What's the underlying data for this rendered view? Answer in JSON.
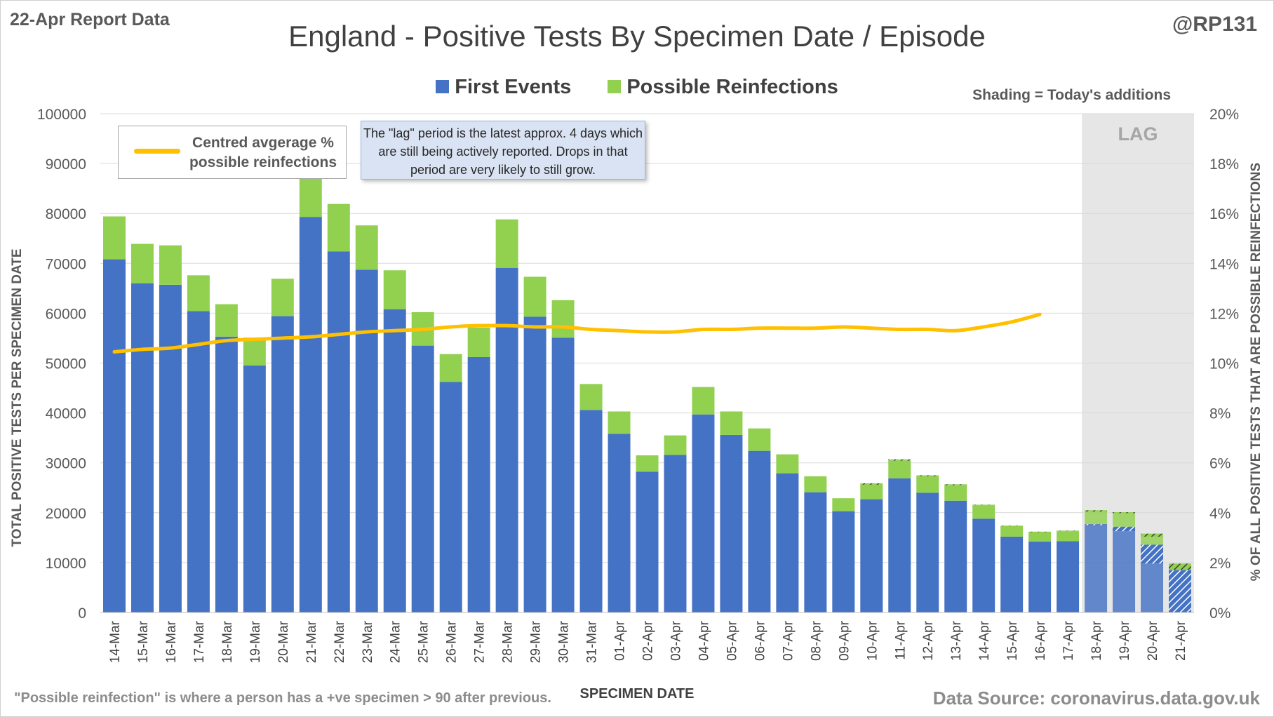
{
  "header": {
    "report_date": "22-Apr Report Data",
    "handle": "@RP131",
    "title": "England - Positive Tests By Specimen Date / Episode",
    "shading_note": "Shading = Today's additions"
  },
  "legend": {
    "first_events": "First Events",
    "possible_reinfections": "Possible Reinfections",
    "line_label": "Centred avgerage % possible reinfections"
  },
  "annotations": {
    "lag_note": "The \"lag\" period is the latest approx. 4 days which are still being actively reported.  Drops in that period are very likely to still grow.",
    "lag_label": "LAG"
  },
  "footer": {
    "footnote": "\"Possible reinfection\" is where a person has a +ve specimen > 90 after previous.",
    "source": "Data Source: coronavirus.data.gov.uk"
  },
  "colors": {
    "first_events": "#4472c4",
    "possible_reinfections": "#92d050",
    "average_line": "#ffc000",
    "lag_shade": "#e7e6e6"
  },
  "chart_data": {
    "type": "bar",
    "stacked": true,
    "xlabel": "SPECIMEN DATE",
    "ylabel": "TOTAL POSITIVE TESTS PER SPECIMEN DATE",
    "y2label": "% OF ALL POSITIVE TESTS THAT ARE POSSIBLE REINFECTIONS",
    "ylim": [
      0,
      100000
    ],
    "y2lim": [
      0,
      20
    ],
    "yticks": [
      "0",
      "10000",
      "20000",
      "30000",
      "40000",
      "50000",
      "60000",
      "70000",
      "80000",
      "90000",
      "100000"
    ],
    "y2ticks": [
      "0%",
      "2%",
      "4%",
      "6%",
      "8%",
      "10%",
      "12%",
      "14%",
      "16%",
      "18%",
      "20%"
    ],
    "grid": true,
    "legend_position": "top",
    "categories": [
      "14-Mar",
      "15-Mar",
      "16-Mar",
      "17-Mar",
      "18-Mar",
      "19-Mar",
      "20-Mar",
      "21-Mar",
      "22-Mar",
      "23-Mar",
      "24-Mar",
      "25-Mar",
      "26-Mar",
      "27-Mar",
      "28-Mar",
      "29-Mar",
      "30-Mar",
      "31-Mar",
      "01-Apr",
      "02-Apr",
      "03-Apr",
      "04-Apr",
      "05-Apr",
      "06-Apr",
      "07-Apr",
      "08-Apr",
      "09-Apr",
      "10-Apr",
      "11-Apr",
      "12-Apr",
      "13-Apr",
      "14-Apr",
      "15-Apr",
      "16-Apr",
      "17-Apr",
      "18-Apr",
      "19-Apr",
      "20-Apr",
      "21-Apr"
    ],
    "series": [
      {
        "name": "First Events",
        "values": [
          70800,
          66000,
          65700,
          60400,
          55300,
          49500,
          59400,
          79300,
          72400,
          68700,
          60800,
          53500,
          46200,
          51200,
          69100,
          59300,
          55100,
          40600,
          35800,
          28200,
          31600,
          39700,
          35600,
          32400,
          27900,
          24100,
          20300,
          22700,
          26900,
          24000,
          22400,
          18800,
          15200,
          14200,
          14300,
          17700,
          17200,
          13600,
          8500
        ]
      },
      {
        "name": "Possible Reinfections",
        "values": [
          8600,
          7900,
          7900,
          7200,
          6500,
          5600,
          7500,
          8000,
          9500,
          8900,
          7800,
          6700,
          5600,
          5900,
          9700,
          8000,
          7500,
          5200,
          4500,
          3300,
          3900,
          5500,
          4700,
          4500,
          3800,
          3200,
          2600,
          3200,
          3800,
          3500,
          3300,
          2800,
          2200,
          2000,
          2100,
          2800,
          2900,
          2200,
          1300
        ]
      },
      {
        "name": "Centred avgerage % possible reinfections",
        "axis": "right",
        "values": [
          10.45,
          10.55,
          10.6,
          10.75,
          10.9,
          10.95,
          11.0,
          11.05,
          11.15,
          11.25,
          11.3,
          11.35,
          11.45,
          11.5,
          11.5,
          11.45,
          11.45,
          11.35,
          11.3,
          11.25,
          11.25,
          11.35,
          11.35,
          11.4,
          11.4,
          11.4,
          11.45,
          11.4,
          11.35,
          11.35,
          11.3,
          11.45,
          11.65,
          11.95,
          null,
          null,
          null,
          null,
          null
        ]
      }
    ],
    "todays_additions": {
      "first_events": [
        0,
        0,
        0,
        0,
        0,
        0,
        0,
        0,
        0,
        0,
        0,
        0,
        0,
        0,
        0,
        0,
        0,
        0,
        0,
        0,
        0,
        0,
        0,
        0,
        0,
        0,
        0,
        0,
        0,
        0,
        0,
        0,
        0,
        0,
        0,
        200,
        900,
        3800,
        8500
      ],
      "possible_reinfections": [
        0,
        0,
        0,
        0,
        0,
        0,
        0,
        0,
        0,
        0,
        0,
        0,
        0,
        0,
        0,
        0,
        0,
        0,
        0,
        0,
        0,
        0,
        0,
        0,
        0,
        0,
        0,
        300,
        300,
        200,
        200,
        100,
        100,
        100,
        100,
        300,
        200,
        600,
        1300
      ]
    },
    "lag_categories": [
      "18-Apr",
      "19-Apr",
      "20-Apr",
      "21-Apr"
    ]
  }
}
